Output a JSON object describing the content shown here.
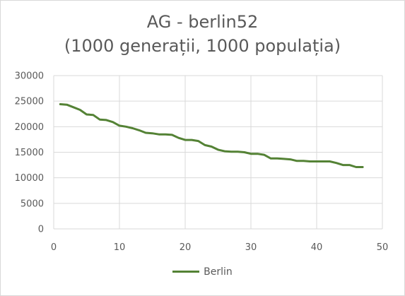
{
  "chart_data": {
    "type": "line",
    "title_line1": "AG - berlin52",
    "title_line2": "(1000 generații, 1000 populația)",
    "xlim": [
      0,
      50
    ],
    "ylim": [
      0,
      30000
    ],
    "x_ticks": [
      0,
      10,
      20,
      30,
      40,
      50
    ],
    "y_ticks": [
      0,
      5000,
      10000,
      15000,
      20000,
      25000,
      30000
    ],
    "grid": true,
    "legend_position": "bottom",
    "series": [
      {
        "name": "Berlin",
        "color": "#548235",
        "x": [
          1,
          2,
          3,
          4,
          5,
          6,
          7,
          8,
          9,
          10,
          11,
          12,
          13,
          14,
          15,
          16,
          17,
          18,
          19,
          20,
          21,
          22,
          23,
          24,
          25,
          26,
          27,
          28,
          29,
          30,
          31,
          32,
          33,
          34,
          35,
          36,
          37,
          38,
          39,
          40,
          41,
          42,
          43,
          44,
          45,
          46,
          47
        ],
        "y": [
          24400,
          24300,
          23800,
          23300,
          22400,
          22300,
          21400,
          21300,
          20900,
          20200,
          20000,
          19700,
          19300,
          18800,
          18700,
          18500,
          18500,
          18400,
          17800,
          17400,
          17400,
          17200,
          16400,
          16100,
          15500,
          15200,
          15100,
          15100,
          15000,
          14700,
          14700,
          14500,
          13800,
          13800,
          13700,
          13600,
          13300,
          13300,
          13200,
          13200,
          13200,
          13200,
          12900,
          12500,
          12500,
          12100,
          12100
        ]
      }
    ]
  }
}
